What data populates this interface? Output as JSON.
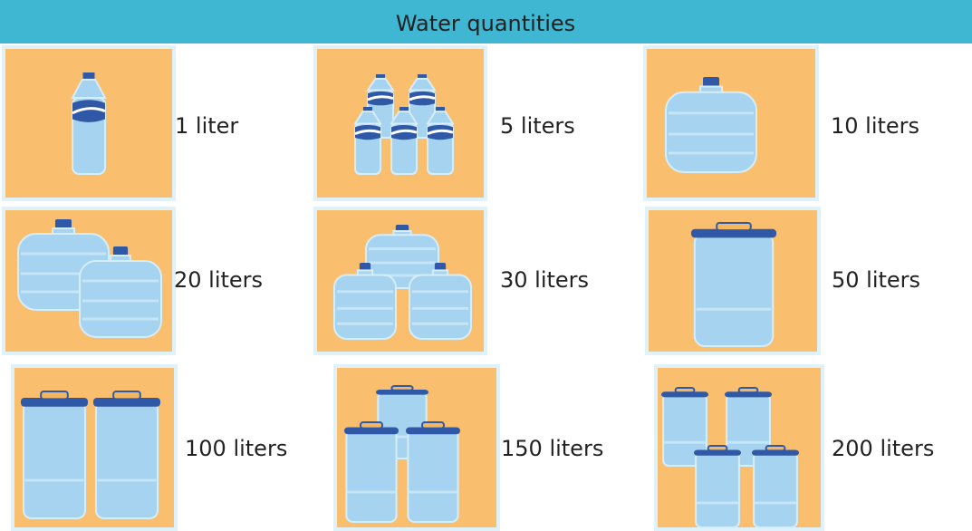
{
  "header": {
    "title": "Water quantities"
  },
  "items": [
    {
      "label": "1 liter"
    },
    {
      "label": "5 liters"
    },
    {
      "label": "10 liters"
    },
    {
      "label": "20 liters"
    },
    {
      "label": "30 liters"
    },
    {
      "label": "50 liters"
    },
    {
      "label": "100 liters"
    },
    {
      "label": "150 liters"
    },
    {
      "label": "200 liters"
    }
  ]
}
